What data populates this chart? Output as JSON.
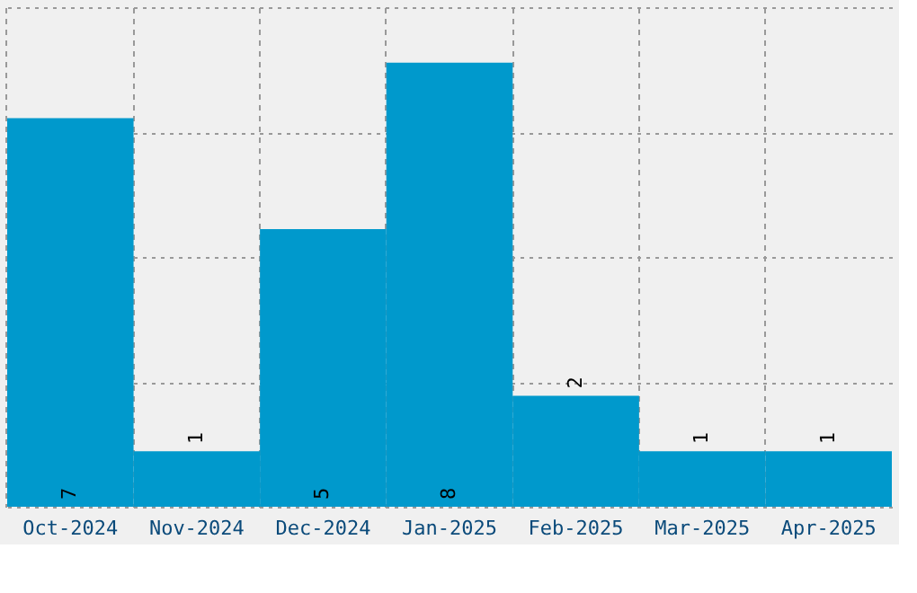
{
  "chart_data": {
    "type": "bar",
    "categories": [
      "Oct-2024",
      "Nov-2024",
      "Dec-2024",
      "Jan-2025",
      "Feb-2025",
      "Mar-2025",
      "Apr-2025"
    ],
    "values": [
      7,
      1,
      5,
      8,
      2,
      1,
      1
    ],
    "color": "#0099cc",
    "ylim": [
      0,
      9
    ],
    "yticks": [
      {
        "value": 0,
        "label": null
      },
      {
        "value": 2.25,
        "label": null
      },
      {
        "value": 4.5,
        "label": null
      },
      {
        "value": 6.75,
        "label": null
      },
      {
        "value": 9,
        "label": null
      }
    ],
    "tick_labels": "x",
    "grid": true,
    "data_labels": true
  }
}
